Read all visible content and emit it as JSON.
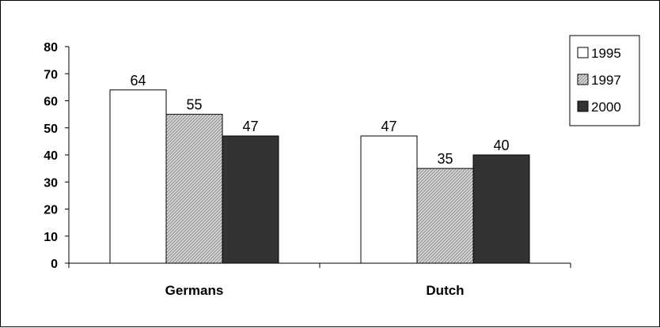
{
  "chart_data": {
    "type": "bar",
    "categories": [
      "Germans",
      "Dutch"
    ],
    "series": [
      {
        "name": "1995",
        "values": [
          64,
          47
        ],
        "color": "#ffffff"
      },
      {
        "name": "1997",
        "values": [
          55,
          35
        ],
        "color": "#c8c8c8"
      },
      {
        "name": "2000",
        "values": [
          47,
          40
        ],
        "color": "#333333"
      }
    ],
    "ylim": [
      0,
      80
    ],
    "yticks": [
      "0",
      "10",
      "20",
      "30",
      "40",
      "50",
      "60",
      "70",
      "80"
    ],
    "data_labels": true,
    "grid": false,
    "legend": "top-right"
  }
}
